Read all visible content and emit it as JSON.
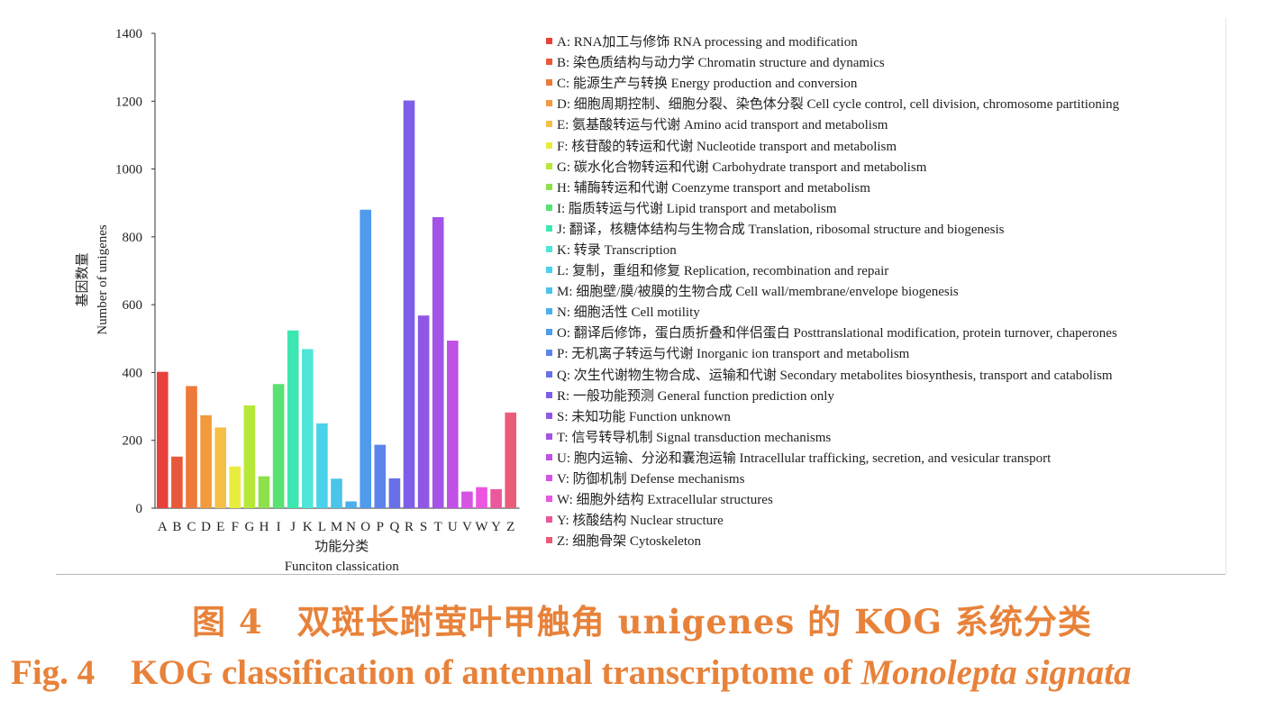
{
  "chart_data": {
    "type": "bar",
    "categories": [
      "A",
      "B",
      "C",
      "D",
      "E",
      "F",
      "G",
      "H",
      "I",
      "J",
      "K",
      "L",
      "M",
      "N",
      "O",
      "P",
      "Q",
      "R",
      "S",
      "T",
      "U",
      "V",
      "W",
      "Y",
      "Z"
    ],
    "values": [
      402,
      152,
      360,
      274,
      238,
      123,
      303,
      94,
      366,
      524,
      469,
      250,
      87,
      20,
      880,
      187,
      88,
      1202,
      568,
      858,
      494,
      49,
      62,
      56,
      282
    ],
    "colors": [
      "#e8413b",
      "#e8593a",
      "#ee7a3a",
      "#f29a3c",
      "#f5c046",
      "#e8ec3e",
      "#b6e839",
      "#8ee04a",
      "#58e274",
      "#3ee7b2",
      "#4ee6d8",
      "#4ad2ec",
      "#4ac4ea",
      "#4bb0ea",
      "#4f9bec",
      "#5d84ec",
      "#6870e8",
      "#7d5ee8",
      "#9057e6",
      "#a353e6",
      "#c050e6",
      "#d753e4",
      "#ec55e0",
      "#ec589c",
      "#eb5c78"
    ],
    "ylabel_cn": "基因数量",
    "ylabel": "Number of unigenes",
    "xlabel_cn": "功能分类",
    "xlabel": "Funciton classication",
    "yticks": [
      0,
      200,
      400,
      600,
      800,
      1000,
      1200,
      1400
    ],
    "ylim": [
      0,
      1400
    ],
    "legend": [
      "A: RNA加工与修饰 RNA processing and modification",
      "B: 染色质结构与动力学 Chromatin structure and dynamics",
      "C: 能源生产与转换 Energy production and conversion",
      "D: 细胞周期控制、细胞分裂、染色体分裂 Cell cycle control, cell division, chromosome partitioning",
      "E: 氨基酸转运与代谢 Amino acid transport and metabolism",
      "F: 核苷酸的转运和代谢 Nucleotide transport and metabolism",
      "G: 碳水化合物转运和代谢 Carbohydrate transport and metabolism",
      "H: 辅酶转运和代谢 Coenzyme transport and metabolism",
      "I: 脂质转运与代谢 Lipid transport and metabolism",
      "J: 翻译，核糖体结构与生物合成 Translation, ribosomal structure and biogenesis",
      "K: 转录 Transcription",
      "L: 复制，重组和修复 Replication, recombination and repair",
      "M: 细胞壁/膜/被膜的生物合成 Cell wall/membrane/envelope biogenesis",
      "N: 细胞活性 Cell motility",
      "O: 翻译后修饰，蛋白质折叠和伴侣蛋白 Posttranslational modification, protein turnover, chaperones",
      "P: 无机离子转运与代谢 Inorganic ion transport and metabolism",
      "Q: 次生代谢物生物合成、运输和代谢 Secondary metabolites biosynthesis, transport and catabolism",
      "R: 一般功能预测 General function prediction only",
      "S: 未知功能 Function unknown",
      "T: 信号转导机制 Signal transduction mechanisms",
      "U: 胞内运输、分泌和囊泡运输 Intracellular trafficking, secretion, and vesicular transport",
      "V: 防御机制 Defense mechanisms",
      "W: 细胞外结构 Extracellular structures",
      "Y: 核酸结构 Nuclear structure",
      "Z: 细胞骨架 Cytoskeleton"
    ]
  },
  "caption": {
    "cn": "图 4　双斑长跗萤叶甲触角 unigenes 的 KOG 系统分类",
    "en_label": "Fig. 4",
    "en_text": "KOG classification of antennal transcriptome of ",
    "en_species": "Monolepta signata"
  }
}
